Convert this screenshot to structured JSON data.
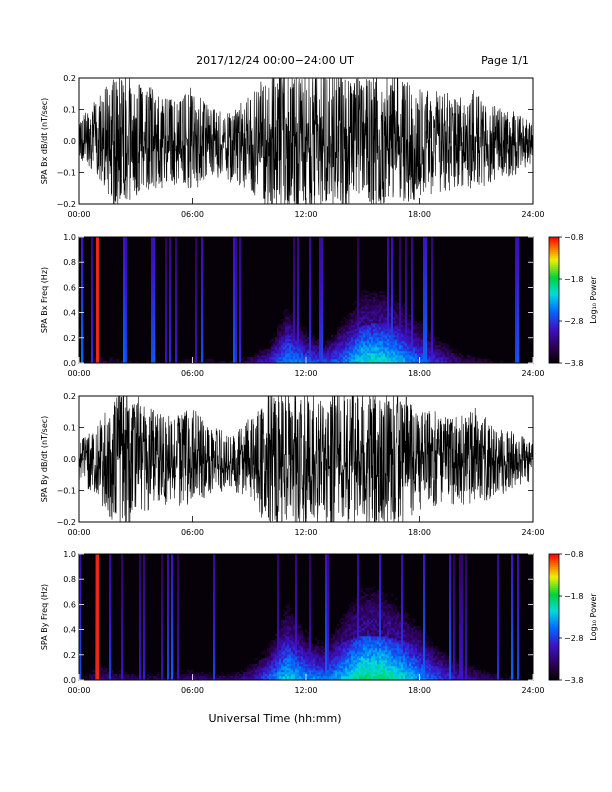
{
  "header": {
    "title": "2017/12/24  00:00−24:00 UT",
    "page": "Page 1/1"
  },
  "footer": {
    "xlabel": "Universal Time (hh:mm)"
  },
  "chart_data": [
    {
      "type": "line",
      "ylabel": "SPA Bx dB/dt (nT/sec)",
      "x_unit": "UT hours",
      "xlim": [
        0,
        24
      ],
      "ylim": [
        -0.2,
        0.2
      ],
      "x_ticks": [
        "00:00",
        "06:00",
        "12:00",
        "18:00",
        "24:00"
      ],
      "y_ticks": [
        "−0.2",
        "−0.1",
        "0.0",
        "0.1",
        "0.2"
      ],
      "series": [
        {
          "x": [
            0,
            1,
            2,
            3,
            4,
            5,
            6,
            7,
            8,
            9,
            10,
            11,
            12,
            13,
            14,
            15,
            16,
            17,
            18,
            19,
            20,
            21,
            22,
            23,
            24
          ],
          "y_max": [
            0.06,
            0.13,
            0.2,
            0.18,
            0.15,
            0.12,
            0.16,
            0.1,
            0.08,
            0.14,
            0.2,
            0.2,
            0.2,
            0.2,
            0.2,
            0.2,
            0.2,
            0.2,
            0.15,
            0.16,
            0.12,
            0.16,
            0.1,
            0.09,
            0.05
          ],
          "y_min": [
            -0.05,
            -0.1,
            -0.2,
            -0.16,
            -0.14,
            -0.13,
            -0.15,
            -0.1,
            -0.12,
            -0.14,
            -0.2,
            -0.2,
            -0.2,
            -0.2,
            -0.2,
            -0.2,
            -0.2,
            -0.2,
            -0.16,
            -0.15,
            -0.14,
            -0.15,
            -0.11,
            -0.1,
            -0.06
          ]
        }
      ]
    },
    {
      "type": "heatmap",
      "ylabel": "SPA Bx Freq (Hz)",
      "x_unit": "UT hours",
      "xlim": [
        0,
        24
      ],
      "ylim": [
        0,
        1.0
      ],
      "x_ticks": [
        "00:00",
        "06:00",
        "12:00",
        "18:00",
        "24:00"
      ],
      "y_ticks": [
        "0.0",
        "0.2",
        "0.4",
        "0.6",
        "0.8",
        "1.0"
      ],
      "colorbar": {
        "label": "Log₁₀ Power",
        "range": [
          -3.8,
          -0.8
        ],
        "ticks": [
          "−0.8",
          "−1.8",
          "−2.8",
          "−3.8"
        ]
      },
      "series": [
        {
          "name": "",
          "hours": [
            0,
            1,
            2,
            3,
            4,
            5,
            6,
            7,
            8,
            9,
            10,
            11,
            12,
            13,
            14,
            15,
            16,
            17,
            18,
            19,
            20,
            21,
            22,
            23,
            24
          ],
          "low_freq_power": [
            -3.7,
            -3.2,
            -3.3,
            -3.4,
            -3.5,
            -3.5,
            -3.2,
            -3.3,
            -3.4,
            -3.1,
            -2.7,
            -2.2,
            -2.4,
            -2.5,
            -2.3,
            -1.9,
            -1.9,
            -2.1,
            -2.4,
            -2.7,
            -3.0,
            -3.2,
            -3.4,
            -3.5,
            -3.7
          ],
          "upper_extent_hz": [
            0.05,
            0.15,
            0.1,
            0.1,
            0.12,
            0.12,
            0.1,
            0.1,
            0.1,
            0.12,
            0.15,
            0.3,
            0.2,
            0.15,
            0.25,
            0.3,
            0.32,
            0.3,
            0.25,
            0.2,
            0.15,
            0.12,
            0.1,
            0.08,
            0.05
          ]
        }
      ]
    },
    {
      "type": "line",
      "ylabel": "SPA By dB/dt (nT/sec)",
      "x_unit": "UT hours",
      "xlim": [
        0,
        24
      ],
      "ylim": [
        -0.2,
        0.2
      ],
      "x_ticks": [
        "00:00",
        "06:00",
        "12:00",
        "18:00",
        "24:00"
      ],
      "y_ticks": [
        "−0.2",
        "−0.1",
        "0.0",
        "0.1",
        "0.2"
      ],
      "series": [
        {
          "x": [
            0,
            1,
            2,
            3,
            4,
            5,
            6,
            7,
            8,
            9,
            10,
            11,
            12,
            13,
            14,
            15,
            16,
            17,
            18,
            19,
            20,
            21,
            22,
            23,
            24
          ],
          "y_max": [
            0.05,
            0.1,
            0.2,
            0.2,
            0.14,
            0.12,
            0.15,
            0.1,
            0.07,
            0.12,
            0.2,
            0.2,
            0.2,
            0.2,
            0.2,
            0.2,
            0.2,
            0.2,
            0.14,
            0.14,
            0.12,
            0.15,
            0.09,
            0.08,
            0.05
          ],
          "y_min": [
            -0.06,
            -0.12,
            -0.2,
            -0.2,
            -0.13,
            -0.14,
            -0.13,
            -0.1,
            -0.09,
            -0.12,
            -0.2,
            -0.2,
            -0.2,
            -0.2,
            -0.2,
            -0.2,
            -0.2,
            -0.2,
            -0.15,
            -0.14,
            -0.13,
            -0.14,
            -0.11,
            -0.09,
            -0.06
          ]
        }
      ]
    },
    {
      "type": "heatmap",
      "ylabel": "SPA By Freq (Hz)",
      "x_unit": "UT hours",
      "xlim": [
        0,
        24
      ],
      "ylim": [
        0,
        1.0
      ],
      "x_ticks": [
        "00:00",
        "06:00",
        "12:00",
        "18:00",
        "24:00"
      ],
      "y_ticks": [
        "0.0",
        "0.2",
        "0.4",
        "0.6",
        "0.8",
        "1.0"
      ],
      "colorbar": {
        "label": "Log₁₀ Power",
        "range": [
          -3.8,
          -0.8
        ],
        "ticks": [
          "−0.8",
          "−1.8",
          "−2.8",
          "−3.8"
        ]
      },
      "series": [
        {
          "name": "",
          "hours": [
            0,
            1,
            2,
            3,
            4,
            5,
            6,
            7,
            8,
            9,
            10,
            11,
            12,
            13,
            14,
            15,
            16,
            17,
            18,
            19,
            20,
            21,
            22,
            23,
            24
          ],
          "low_freq_power": [
            -3.6,
            -3.0,
            -3.1,
            -3.2,
            -3.3,
            -3.3,
            -3.0,
            -3.1,
            -3.2,
            -2.9,
            -2.4,
            -2.0,
            -2.2,
            -2.3,
            -2.0,
            -1.7,
            -1.7,
            -1.9,
            -2.2,
            -2.5,
            -2.8,
            -3.0,
            -3.2,
            -3.3,
            -3.6
          ],
          "upper_extent_hz": [
            0.08,
            0.2,
            0.15,
            0.15,
            0.15,
            0.15,
            0.12,
            0.12,
            0.12,
            0.15,
            0.2,
            0.35,
            0.25,
            0.2,
            0.3,
            0.35,
            0.35,
            0.32,
            0.28,
            0.22,
            0.18,
            0.15,
            0.12,
            0.1,
            0.08
          ]
        }
      ]
    }
  ]
}
